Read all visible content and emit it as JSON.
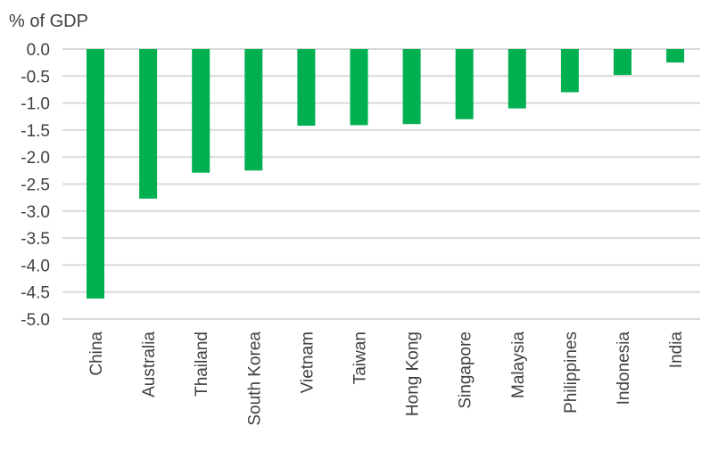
{
  "chart_data": {
    "type": "bar",
    "ylabel": "% of GDP",
    "categories": [
      "China",
      "Australia",
      "Thailand",
      "South Korea",
      "Vietnam",
      "Taiwan",
      "Hong Kong",
      "Singapore",
      "Malaysia",
      "Philippines",
      "Indonesia",
      "India"
    ],
    "values": [
      -4.62,
      -2.77,
      -2.29,
      -2.25,
      -1.42,
      -1.41,
      -1.39,
      -1.3,
      -1.1,
      -0.8,
      -0.48,
      -0.25
    ],
    "ylim": [
      -5.0,
      0.0
    ],
    "yticks": [
      "0.0",
      "-0.5",
      "-1.0",
      "-1.5",
      "-2.0",
      "-2.5",
      "-3.0",
      "-3.5",
      "-4.0",
      "-4.5",
      "-5.0"
    ],
    "grid": true,
    "bar_color": "#00b050",
    "legend": "none"
  }
}
